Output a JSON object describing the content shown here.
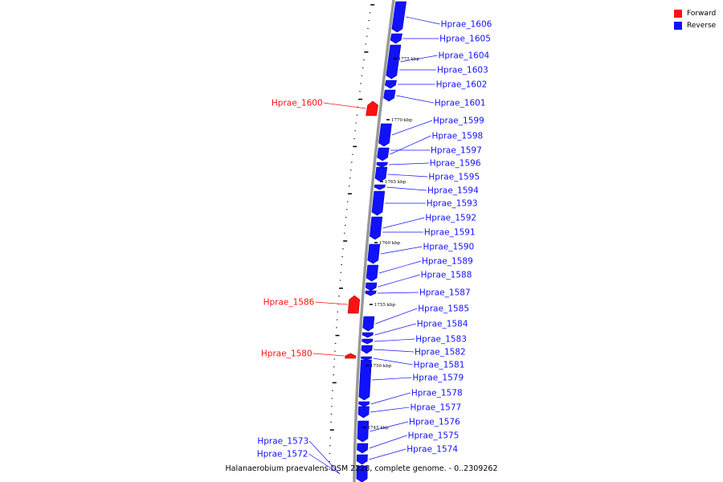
{
  "caption": "Halanaerobium praevalens DSM 2228, complete genome. - 0..2309262",
  "legend": [
    {
      "label": "Forward",
      "color": "#ff1111"
    },
    {
      "label": "Reverse",
      "color": "#1111ff"
    }
  ],
  "colors": {
    "forward": "#ff1111",
    "reverse": "#1111ff",
    "backbone": "#999999"
  },
  "kbp_markers": [
    "1775 kbp",
    "1770 kbp",
    "1765 kbp",
    "1760 kbp",
    "1755 kbp",
    "1750 kbp",
    "1745 kbp"
  ],
  "genes": [
    {
      "name": "Hprae_1606",
      "strand": "reverse"
    },
    {
      "name": "Hprae_1605",
      "strand": "reverse"
    },
    {
      "name": "Hprae_1604",
      "strand": "reverse"
    },
    {
      "name": "Hprae_1603",
      "strand": "reverse"
    },
    {
      "name": "Hprae_1602",
      "strand": "reverse"
    },
    {
      "name": "Hprae_1601",
      "strand": "reverse"
    },
    {
      "name": "Hprae_1600",
      "strand": "forward"
    },
    {
      "name": "Hprae_1599",
      "strand": "reverse"
    },
    {
      "name": "Hprae_1598",
      "strand": "reverse"
    },
    {
      "name": "Hprae_1597",
      "strand": "reverse"
    },
    {
      "name": "Hprae_1596",
      "strand": "reverse"
    },
    {
      "name": "Hprae_1595",
      "strand": "reverse"
    },
    {
      "name": "Hprae_1594",
      "strand": "reverse"
    },
    {
      "name": "Hprae_1593",
      "strand": "reverse"
    },
    {
      "name": "Hprae_1592",
      "strand": "reverse"
    },
    {
      "name": "Hprae_1591",
      "strand": "reverse"
    },
    {
      "name": "Hprae_1590",
      "strand": "reverse"
    },
    {
      "name": "Hprae_1589",
      "strand": "reverse"
    },
    {
      "name": "Hprae_1588",
      "strand": "reverse"
    },
    {
      "name": "Hprae_1587",
      "strand": "reverse"
    },
    {
      "name": "Hprae_1586",
      "strand": "forward"
    },
    {
      "name": "Hprae_1585",
      "strand": "reverse"
    },
    {
      "name": "Hprae_1584",
      "strand": "reverse"
    },
    {
      "name": "Hprae_1583",
      "strand": "reverse"
    },
    {
      "name": "Hprae_1582",
      "strand": "reverse"
    },
    {
      "name": "Hprae_1581",
      "strand": "reverse"
    },
    {
      "name": "Hprae_1580",
      "strand": "forward"
    },
    {
      "name": "Hprae_1579",
      "strand": "reverse"
    },
    {
      "name": "Hprae_1578",
      "strand": "reverse"
    },
    {
      "name": "Hprae_1577",
      "strand": "reverse"
    },
    {
      "name": "Hprae_1576",
      "strand": "reverse"
    },
    {
      "name": "Hprae_1575",
      "strand": "reverse"
    },
    {
      "name": "Hprae_1574",
      "strand": "reverse"
    },
    {
      "name": "Hprae_1573",
      "strand": "reverse"
    },
    {
      "name": "Hprae_1572",
      "strand": "reverse"
    }
  ]
}
